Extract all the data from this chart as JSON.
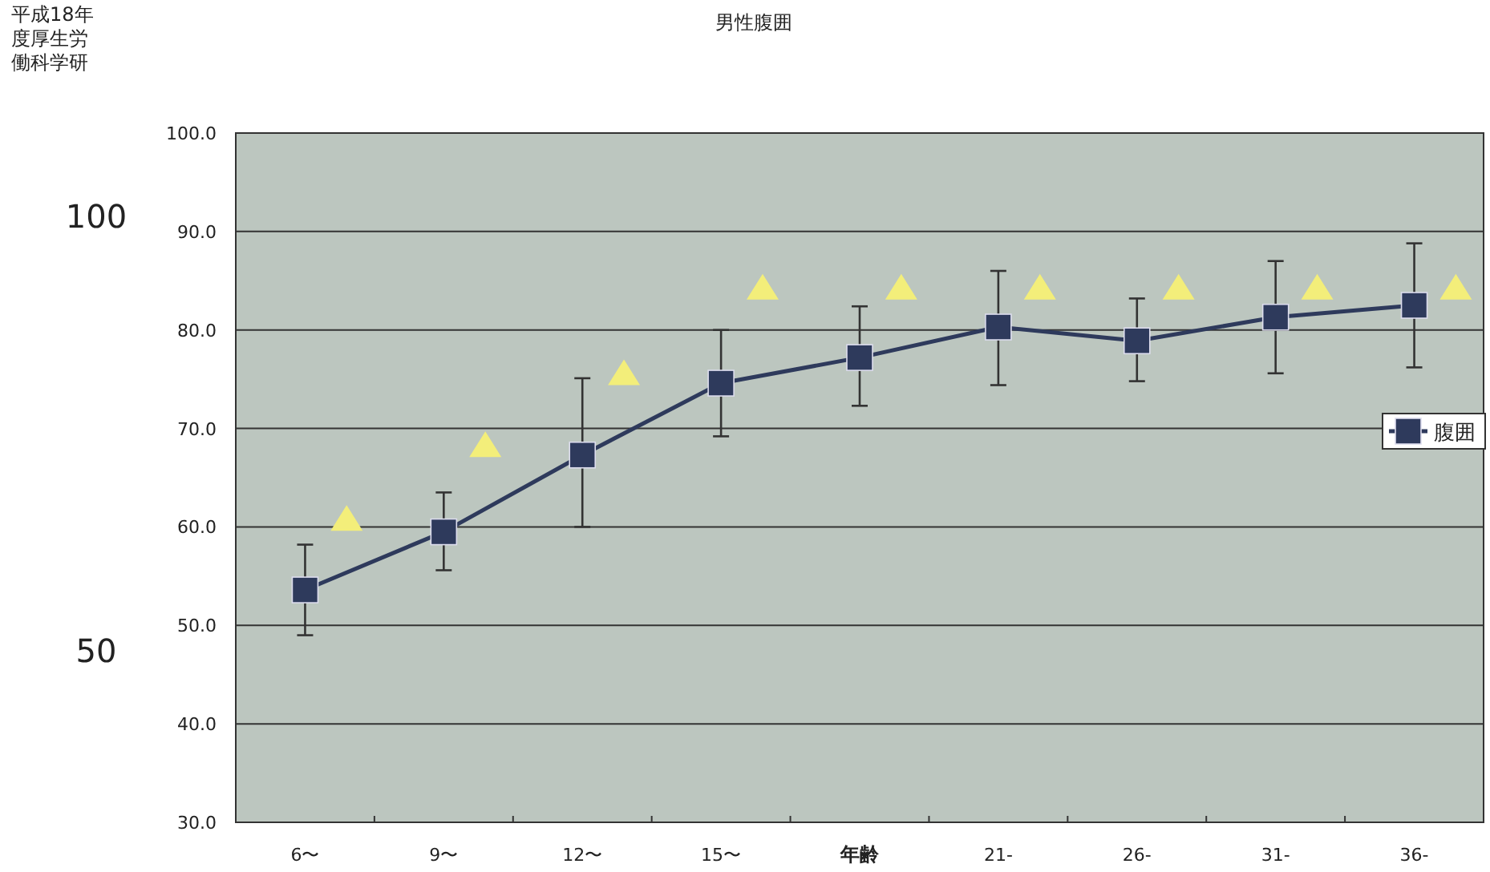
{
  "chart_data": {
    "type": "line",
    "title": "男性腹囲",
    "xlabel": "年齢",
    "categories": [
      "6〜",
      "9〜",
      "12〜",
      "15〜",
      null,
      "21-",
      "26-",
      "31-",
      "36-"
    ],
    "series": [
      {
        "name": "腹囲",
        "color": "#2e3a5c",
        "marker": "square",
        "line_style": "solid",
        "values": [
          53.6,
          59.5,
          67.3,
          74.6,
          77.2,
          80.3,
          78.9,
          81.3,
          82.5
        ],
        "errors": [
          [
            49.0,
            58.2
          ],
          [
            55.6,
            63.5
          ],
          [
            60.0,
            75.1
          ],
          [
            69.2,
            80.0
          ],
          [
            72.3,
            82.4
          ],
          [
            74.4,
            86.0
          ],
          [
            74.8,
            83.2
          ],
          [
            75.6,
            87.0
          ],
          [
            76.2,
            88.8
          ]
        ]
      },
      {
        "type": "scatter",
        "color": "#f3ee7a",
        "marker": "triangle",
        "values": [
          60.9,
          68.4,
          75.7,
          84.4,
          84.4,
          84.4,
          84.4,
          84.4,
          84.4
        ]
      }
    ],
    "ylim": [
      30,
      100
    ],
    "yticks": [
      {
        "value": 30,
        "label": "30.0"
      },
      {
        "value": 40,
        "label": "40.0"
      },
      {
        "value": 50,
        "label": "50.0"
      },
      {
        "value": 60,
        "label": "60.0"
      },
      {
        "value": 70,
        "label": "70.0"
      },
      {
        "value": 80,
        "label": "80.0"
      },
      {
        "value": 90,
        "label": "90.0"
      },
      {
        "value": 100,
        "label": "100.0"
      }
    ],
    "grid": "y",
    "legend": "right",
    "annotations": [
      "平成18年度厚生労働科学研",
      "100",
      "50"
    ]
  }
}
